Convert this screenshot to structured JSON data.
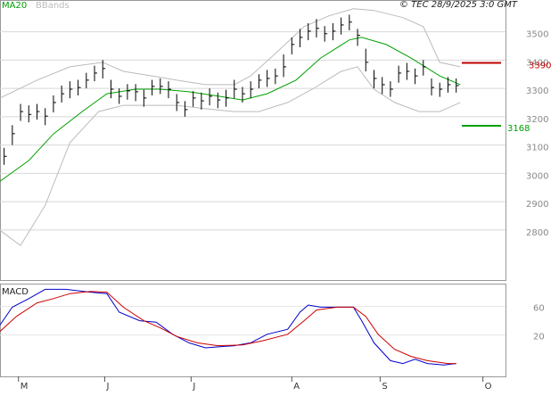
{
  "chart_data": [
    {
      "type": "ohlc",
      "annotation": "© TEC 28/9/2025 3:0 GMT",
      "xlim": [
        0,
        123
      ],
      "ylim": [
        2620,
        3612
      ],
      "yticks": [
        2800,
        2900,
        3000,
        3100,
        3200,
        3300,
        3400,
        3500
      ],
      "grid": true,
      "price": {
        "color": "#000000",
        "x": [
          1,
          3,
          5,
          7,
          9,
          11,
          13,
          15,
          17,
          19,
          21,
          23,
          25,
          27,
          29,
          31,
          33,
          35,
          37,
          39,
          41,
          43,
          45,
          47,
          49,
          51,
          53,
          55,
          57,
          59,
          61,
          63,
          65,
          67,
          69,
          71,
          73,
          75,
          77,
          79,
          81,
          83,
          85,
          87,
          89,
          91,
          93,
          95,
          97,
          99,
          101,
          103,
          105,
          107,
          109,
          111
        ],
        "high": [
          3090,
          3170,
          3245,
          3240,
          3245,
          3230,
          3275,
          3310,
          3325,
          3330,
          3355,
          3380,
          3400,
          3330,
          3300,
          3315,
          3315,
          3295,
          3330,
          3335,
          3325,
          3280,
          3255,
          3290,
          3285,
          3300,
          3285,
          3295,
          3330,
          3305,
          3325,
          3350,
          3365,
          3370,
          3420,
          3480,
          3510,
          3530,
          3545,
          3520,
          3530,
          3550,
          3560,
          3510,
          3440,
          3365,
          3340,
          3325,
          3380,
          3390,
          3370,
          3400,
          3335,
          3320,
          3340,
          3335
        ],
        "low": [
          3030,
          3100,
          3185,
          3180,
          3190,
          3170,
          3215,
          3250,
          3265,
          3275,
          3300,
          3325,
          3335,
          3265,
          3245,
          3260,
          3255,
          3235,
          3275,
          3280,
          3265,
          3220,
          3200,
          3235,
          3225,
          3240,
          3230,
          3235,
          3265,
          3250,
          3265,
          3300,
          3305,
          3315,
          3340,
          3420,
          3445,
          3470,
          3480,
          3465,
          3470,
          3490,
          3505,
          3450,
          3360,
          3300,
          3280,
          3270,
          3320,
          3330,
          3315,
          3345,
          3275,
          3270,
          3285,
          3285
        ],
        "close": [
          3060,
          3140,
          3218,
          3208,
          3218,
          3202,
          3250,
          3281,
          3297,
          3303,
          3329,
          3354,
          3370,
          3297,
          3272,
          3291,
          3288,
          3266,
          3307,
          3307,
          3297,
          3250,
          3225,
          3266,
          3256,
          3272,
          3259,
          3266,
          3297,
          3281,
          3297,
          3329,
          3335,
          3344,
          3376,
          3455,
          3480,
          3502,
          3512,
          3493,
          3502,
          3524,
          3534,
          3487,
          3392,
          3335,
          3313,
          3297,
          3354,
          3360,
          3344,
          3376,
          3303,
          3297,
          3313,
          3310
        ]
      },
      "series": [
        {
          "name": "MA20",
          "color": "#00a000",
          "x": [
            0,
            7,
            13,
            20,
            26,
            33,
            39,
            46,
            52,
            59,
            65,
            72,
            78,
            85,
            88,
            94,
            100,
            107,
            112
          ],
          "values": [
            2972,
            3045,
            3139,
            3218,
            3281,
            3297,
            3297,
            3288,
            3275,
            3259,
            3281,
            3329,
            3407,
            3471,
            3480,
            3455,
            3407,
            3344,
            3313
          ]
        },
        {
          "name": "BBands",
          "color": "#bbbbbb",
          "x": [
            0,
            9,
            17,
            25,
            30,
            37,
            43,
            50,
            57,
            61,
            67,
            74,
            80,
            86,
            91,
            98,
            103,
            107,
            112
          ],
          "upper": [
            3266,
            3329,
            3376,
            3392,
            3360,
            3344,
            3329,
            3313,
            3313,
            3344,
            3423,
            3518,
            3556,
            3581,
            3575,
            3550,
            3518,
            3392,
            3376
          ],
          "x_lower": [
            0,
            5,
            11,
            17,
            24,
            30,
            37,
            43,
            50,
            57,
            63,
            70,
            76,
            83,
            87,
            91,
            96,
            102,
            107,
            112
          ],
          "lower": [
            2799,
            2745,
            2887,
            3108,
            3218,
            3240,
            3240,
            3240,
            3228,
            3218,
            3218,
            3250,
            3297,
            3360,
            3376,
            3297,
            3250,
            3218,
            3218,
            3250
          ]
        }
      ],
      "levels": [
        {
          "value": 3390,
          "color": "#c00000"
        },
        {
          "value": 3168,
          "color": "#00a000"
        }
      ]
    },
    {
      "type": "line",
      "title": "MACD",
      "xlim": [
        0,
        123
      ],
      "xticks": [
        {
          "value": 4.5,
          "label": "M"
        },
        {
          "value": 25.5,
          "label": "J"
        },
        {
          "value": 46.5,
          "label": "J"
        },
        {
          "value": 71,
          "label": "A"
        },
        {
          "value": 92.5,
          "label": "S"
        },
        {
          "value": 117.5,
          "label": "O"
        }
      ],
      "ylim": [
        -38,
        92
      ],
      "yticks": [
        20,
        60
      ],
      "series": [
        {
          "color": "#0000cc",
          "x": [
            0,
            3,
            7,
            11,
            16,
            22,
            26,
            29,
            34,
            38,
            42,
            46,
            50,
            57,
            61,
            65,
            70,
            73,
            75,
            78,
            83,
            86,
            88,
            91,
            95,
            98,
            101,
            104,
            108,
            111
          ],
          "values": [
            34,
            59,
            71,
            84,
            84,
            80,
            78,
            52,
            40,
            38,
            21,
            9,
            2,
            5,
            9,
            21,
            28,
            52,
            62,
            59,
            59,
            59,
            40,
            9,
            -16,
            -20,
            -14,
            -20,
            -22,
            -20
          ]
        },
        {
          "color": "#cc0000",
          "x": [
            0,
            4,
            9,
            13,
            17,
            22,
            26,
            30,
            35,
            39,
            43,
            48,
            53,
            59,
            64,
            70,
            74,
            77,
            82,
            86,
            89,
            92,
            96,
            100,
            104,
            109,
            111
          ],
          "values": [
            25,
            46,
            65,
            71,
            78,
            81,
            80,
            59,
            40,
            30,
            18,
            9,
            5,
            6,
            12,
            21,
            40,
            55,
            59,
            59,
            46,
            21,
            0,
            -10,
            -16,
            -20,
            -20
          ]
        }
      ]
    }
  ]
}
